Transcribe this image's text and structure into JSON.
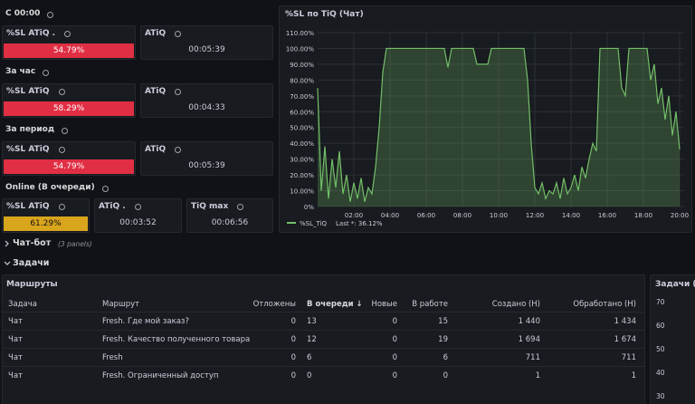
{
  "sections": [
    {
      "title": "С 00:00",
      "panels": [
        {
          "title": "%SL ATiQ .",
          "value": "54.79%"
        },
        {
          "title": "ATiQ",
          "value": "00:05:39"
        }
      ]
    },
    {
      "title": "За час",
      "panels": [
        {
          "title": "%SL ATiQ",
          "value": "58.29%"
        },
        {
          "title": "ATiQ",
          "value": "00:04:33"
        }
      ]
    },
    {
      "title": "За период",
      "panels": [
        {
          "title": "%SL ATiQ",
          "value": "54.79%"
        },
        {
          "title": "ATiQ",
          "value": "00:05:39"
        }
      ]
    },
    {
      "title": "Online (В очереди)",
      "panels": [
        {
          "title": "%SL ATiQ",
          "value": "61.29%"
        },
        {
          "title": "ATiQ .",
          "value": "00:03:52"
        },
        {
          "title": "TiQ max",
          "value": "00:06:56"
        }
      ]
    }
  ],
  "chart_data": {
    "type": "line",
    "title": "%SL по TiQ (Чат)",
    "x": [
      0,
      0.2,
      0.4,
      0.6,
      0.8,
      1,
      1.2,
      1.4,
      1.6,
      1.8,
      2,
      2.2,
      2.4,
      2.6,
      2.8,
      3,
      3.2,
      3.4,
      3.6,
      3.8,
      4,
      5,
      6,
      7,
      7.2,
      7.4,
      7.6,
      8,
      8.6,
      8.8,
      9,
      9.4,
      9.6,
      10,
      11,
      11.4,
      11.6,
      11.8,
      12,
      12.2,
      12.4,
      12.6,
      12.8,
      13,
      13.2,
      13.4,
      13.6,
      13.8,
      14,
      14.2,
      14.4,
      14.6,
      14.8,
      15,
      15.2,
      15.4,
      15.6,
      15.8,
      16,
      16.4,
      16.6,
      16.8,
      17,
      17.2,
      17.4,
      18,
      18.2,
      18.4,
      18.6,
      18.8,
      19,
      19.2,
      19.4,
      19.6,
      19.8,
      20
    ],
    "series": [
      {
        "name": "%SL_TiQ",
        "color": "#73bf69",
        "values": [
          75,
          10,
          38,
          5,
          30,
          12,
          35,
          8,
          20,
          3,
          15,
          5,
          18,
          3,
          12,
          8,
          25,
          50,
          85,
          100,
          100,
          100,
          100,
          100,
          88,
          100,
          100,
          100,
          100,
          90,
          90,
          90,
          100,
          100,
          100,
          100,
          80,
          40,
          12,
          8,
          15,
          5,
          10,
          8,
          15,
          5,
          18,
          8,
          12,
          20,
          10,
          25,
          18,
          30,
          40,
          35,
          100,
          100,
          100,
          100,
          100,
          75,
          70,
          100,
          100,
          100,
          100,
          80,
          90,
          65,
          75,
          55,
          70,
          45,
          60,
          36.12
        ]
      }
    ],
    "legend_text": "Last *: 36.12%",
    "xlim": [
      0,
      20.25
    ],
    "xticks": [
      {
        "value": 2,
        "label": "02:00"
      },
      {
        "value": 4,
        "label": "04:00"
      },
      {
        "value": 6,
        "label": "06:00"
      },
      {
        "value": 8,
        "label": "08:00"
      },
      {
        "value": 10,
        "label": "10:00"
      },
      {
        "value": 12,
        "label": "12:00"
      },
      {
        "value": 14,
        "label": "14:00"
      },
      {
        "value": 16,
        "label": "16:00"
      },
      {
        "value": 18,
        "label": "18:00"
      },
      {
        "value": 20,
        "label": "20:00"
      }
    ],
    "ylim": [
      0,
      110
    ],
    "yticks": [
      {
        "value": 0,
        "label": "0%"
      },
      {
        "value": 10,
        "label": "10.00%"
      },
      {
        "value": 20,
        "label": "20.00%"
      },
      {
        "value": 30,
        "label": "30.00%"
      },
      {
        "value": 40,
        "label": "40.00%"
      },
      {
        "value": 50,
        "label": "50.00%"
      },
      {
        "value": 60,
        "label": "60.00%"
      },
      {
        "value": 70,
        "label": "70.00%"
      },
      {
        "value": 80,
        "label": "80.00%"
      },
      {
        "value": 90,
        "label": "90.00%"
      },
      {
        "value": 100,
        "label": "100.00%"
      },
      {
        "value": 110,
        "label": "110.00%"
      }
    ],
    "grid": true
  },
  "rows": [
    {
      "title": "Чат-бот",
      "note": "(3 panels)"
    },
    {
      "title": "Задачи"
    }
  ],
  "table": {
    "title": "Маршруты",
    "columns": [
      "Задача",
      "Маршрут",
      "Отложены",
      "В очереди ↓",
      "Новые",
      "В работе",
      "Создано (Н)",
      "Обработано (Н)"
    ],
    "rows": [
      [
        "Чат",
        "Fresh. Где мой заказ?",
        "0",
        "13",
        "0",
        "15",
        "1 440",
        "1 434"
      ],
      [
        "Чат",
        "Fresh. Качество полученного товара",
        "0",
        "12",
        "0",
        "19",
        "1 694",
        "1 674"
      ],
      [
        "Чат",
        "Fresh",
        "0",
        "6",
        "0",
        "6",
        "711",
        "711"
      ],
      [
        "Чат",
        "Fresh. Ограниченный доступ",
        "0",
        "0",
        "0",
        "0",
        "1",
        "1"
      ]
    ]
  },
  "side_panel": {
    "title": "Задачи (Чат)",
    "ticks": [
      "70",
      "60",
      "50",
      "40",
      "30"
    ]
  }
}
